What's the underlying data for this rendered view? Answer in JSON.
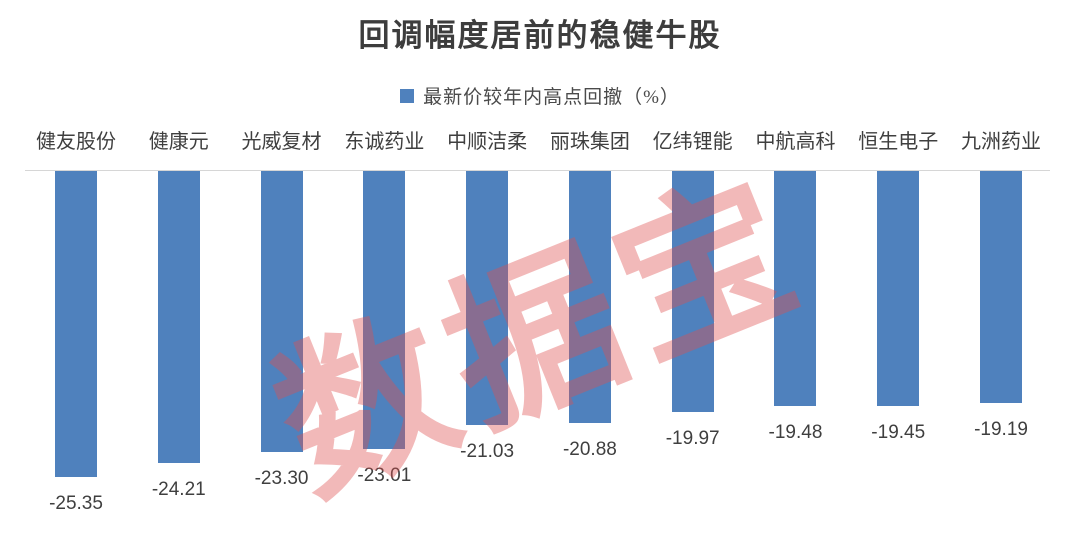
{
  "chart_data": {
    "type": "bar",
    "title": "回调幅度居前的稳健牛股",
    "legend": {
      "label": "最新价较年内高点回撤（%）",
      "color": "#4F81BD",
      "position": "top"
    },
    "categories": [
      "健友股份",
      "健康元",
      "光威复材",
      "东诚药业",
      "中顺洁柔",
      "丽珠集团",
      "亿纬锂能",
      "中航高科",
      "恒生电子",
      "九洲药业"
    ],
    "series": [
      {
        "name": "最新价较年内高点回撤（%）",
        "values": [
          -25.35,
          -24.21,
          -23.3,
          -23.01,
          -21.03,
          -20.88,
          -19.97,
          -19.48,
          -19.45,
          -19.19
        ]
      }
    ],
    "value_labels": [
      "-25.35",
      "-24.21",
      "-23.30",
      "-23.01",
      "-21.03",
      "-20.88",
      "-19.97",
      "-19.48",
      "-19.45",
      "-19.19"
    ],
    "xlabel": "",
    "ylabel": "",
    "ylim": [
      -26,
      0
    ],
    "grid": false,
    "bar_color": "#4F81BD",
    "axis_line_color": "#D6D6D6",
    "label_color": "#3F3F3F",
    "watermark": {
      "text": "数据宝",
      "color": "#DE5050",
      "opacity": 0.4,
      "rotation_deg": -22
    }
  }
}
